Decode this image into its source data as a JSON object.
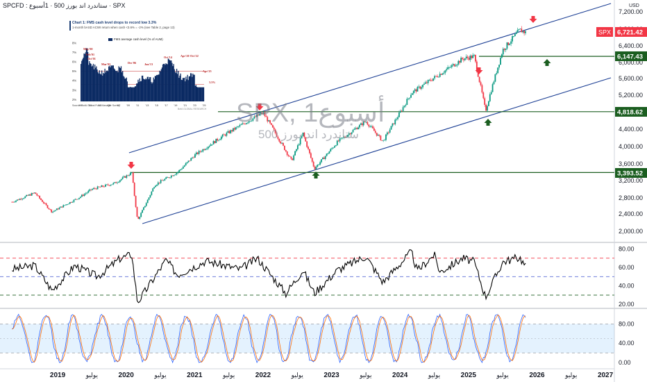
{
  "header": {
    "title": "SPCFD : ستاندرد اند بورز 500 · 1أسبوع · SPX"
  },
  "watermark": {
    "line1": "SPX, 1أسبوع",
    "line2": "ستاندرد اند بورز 500"
  },
  "currency": "USD",
  "colors": {
    "up": "#089981",
    "down": "#f23645",
    "channel": "#1c3f94",
    "support": "#1b5e20",
    "arrow_up": "#1b5e20",
    "arrow_down": "#f23645"
  },
  "price_labels": [
    {
      "text": "SPX",
      "style": "red-tag"
    },
    {
      "text": "6,721.42",
      "value": 6721.42,
      "style": "red"
    },
    {
      "text": "6,147.43",
      "value": 6147.43,
      "style": "green"
    },
    {
      "text": "4,818.62",
      "value": 4818.62,
      "style": "green"
    },
    {
      "text": "3,393.52",
      "value": 3393.52,
      "style": "green"
    }
  ],
  "inset": {
    "title": "Chart 1: FMS cash level drops to record low 3.3%",
    "subtitle": "1-month bASD ACWI return when cash <3.6% = -2% (see Table 2, page 13)",
    "legend": "FMS average cash level (% of AUM)",
    "source": "Source: BofA Global Fund Manager Survey",
    "footer": "BofA GLOBAL RESEARCH",
    "y_ticks": [
      "8%",
      "7%",
      "6%",
      "5%",
      "4%",
      "3%",
      "2%"
    ],
    "x_ticks": [
      "'99",
      "'01",
      "'03",
      "'05",
      "'07",
      "'09",
      "'11",
      "'13",
      "'15",
      "'17",
      "'19",
      "'21",
      "'23",
      "'25"
    ],
    "annotations": [
      "May'00",
      "Feb'01",
      "Oct'01",
      "Mar'03",
      "Dec'06",
      "Jun'13",
      "Oct'14",
      "Apr'20",
      "Oct'22",
      "Apr'25",
      "3.3%"
    ]
  },
  "chart_data": [
    {
      "type": "candlestick",
      "title": "SPX, 1أسبوع",
      "x_ticks": [
        "2019",
        "يوليو",
        "2020",
        "يوليو",
        "2021",
        "يوليو",
        "2022",
        "يوليو",
        "2023",
        "يوليو",
        "2024",
        "يوليو",
        "2025",
        "يوليو",
        "2026",
        "يوليو",
        "2027"
      ],
      "y_ticks": [
        "7,200.00",
        "6,800.00",
        "6,400.00",
        "6,000.00",
        "5,600.00",
        "5,200.00",
        "4,800.00",
        "4,400.00",
        "4,000.00",
        "3,600.00",
        "3,200.00",
        "2,800.00",
        "2,400.00",
        "2,000.00"
      ],
      "ylim": [
        1900,
        7300
      ],
      "close_path": [
        [
          "2018-05",
          2700
        ],
        [
          "2018-09",
          2920
        ],
        [
          "2018-12",
          2450
        ],
        [
          "2019-05",
          2830
        ],
        [
          "2019-07",
          3000
        ],
        [
          "2019-11",
          3140
        ],
        [
          "2020-02",
          3390
        ],
        [
          "2020-03",
          2237
        ],
        [
          "2020-06",
          3100
        ],
        [
          "2020-10",
          3400
        ],
        [
          "2021-01",
          3800
        ],
        [
          "2021-06",
          4250
        ],
        [
          "2022-01",
          4796
        ],
        [
          "2022-06",
          3670
        ],
        [
          "2022-08",
          4300
        ],
        [
          "2022-10",
          3490
        ],
        [
          "2023-02",
          4100
        ],
        [
          "2023-07",
          4590
        ],
        [
          "2023-10",
          4117
        ],
        [
          "2024-03",
          5250
        ],
        [
          "2024-07",
          5620
        ],
        [
          "2024-12",
          6090
        ],
        [
          "2025-02",
          6147
        ],
        [
          "2025-04",
          4835
        ],
        [
          "2025-07",
          6300
        ],
        [
          "2025-10",
          6780
        ],
        [
          "2025-11",
          6721.42
        ]
      ],
      "channel_upper": [
        [
          "2020-02",
          3750
        ],
        [
          "2027-01",
          7330
        ]
      ],
      "channel_lower": [
        [
          "2020-03",
          2200
        ],
        [
          "2027-01",
          5550
        ]
      ],
      "support_levels": [
        6147.43,
        4818.62,
        3393.52
      ],
      "last": 6721.42
    },
    {
      "type": "line",
      "name": "RSI",
      "y_ticks": [
        "80.00",
        "60.00",
        "40.00",
        "20.00"
      ],
      "ylim": [
        15,
        86
      ],
      "levels": [
        70,
        50,
        30
      ],
      "points": [
        [
          "2018-05",
          58
        ],
        [
          "2018-09",
          62
        ],
        [
          "2018-12",
          35
        ],
        [
          "2019-04",
          62
        ],
        [
          "2019-08",
          50
        ],
        [
          "2019-12",
          70
        ],
        [
          "2020-02",
          74
        ],
        [
          "2020-03",
          22
        ],
        [
          "2020-08",
          68
        ],
        [
          "2020-10",
          52
        ],
        [
          "2021-03",
          67
        ],
        [
          "2021-09",
          58
        ],
        [
          "2021-12",
          70
        ],
        [
          "2022-05",
          32
        ],
        [
          "2022-08",
          57
        ],
        [
          "2022-10",
          32
        ],
        [
          "2023-02",
          57
        ],
        [
          "2023-07",
          72
        ],
        [
          "2023-10",
          44
        ],
        [
          "2024-03",
          77
        ],
        [
          "2024-04",
          56
        ],
        [
          "2024-07",
          74
        ],
        [
          "2024-08",
          55
        ],
        [
          "2024-12",
          70
        ],
        [
          "2025-02",
          66
        ],
        [
          "2025-04",
          28
        ],
        [
          "2025-07",
          66
        ],
        [
          "2025-10",
          71
        ],
        [
          "2025-11",
          61
        ]
      ]
    },
    {
      "type": "line",
      "name": "Stochastic RSI",
      "y_ticks": [
        "80.00",
        "40.00",
        "0.00"
      ],
      "ylim": [
        -8,
        108
      ],
      "band": [
        20,
        80
      ],
      "mid": 50,
      "series": [
        {
          "name": "K",
          "color": "#2962ff"
        },
        {
          "name": "D",
          "color": "#ff6d00"
        }
      ]
    }
  ]
}
